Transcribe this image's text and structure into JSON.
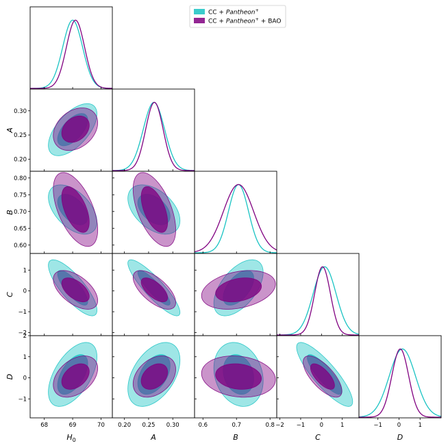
{
  "chart_data": {
    "type": "corner",
    "params": [
      {
        "name": "H0",
        "label": "H",
        "label_sub": "0",
        "range": [
          67.5,
          70.4
        ],
        "ticks": [
          "68",
          "69",
          "70"
        ],
        "tick_values": [
          68,
          69,
          70
        ]
      },
      {
        "name": "A",
        "label": "A",
        "label_sub": "",
        "range": [
          0.175,
          0.345
        ],
        "ticks": [
          "0.20",
          "0.25",
          "0.30"
        ],
        "tick_values": [
          0.2,
          0.25,
          0.3
        ]
      },
      {
        "name": "B",
        "label": "B",
        "label_sub": "",
        "range": [
          0.575,
          0.82
        ],
        "ticks": [
          "0.6",
          "0.7",
          "0.8"
        ],
        "tick_values": [
          0.6,
          0.7,
          0.8
        ]
      },
      {
        "name": "C",
        "label": "C",
        "label_sub": "",
        "range": [
          -2.15,
          1.8
        ],
        "ticks": [
          "−2",
          "−1",
          "0",
          "1"
        ],
        "tick_values": [
          -2,
          -1,
          0,
          1
        ]
      },
      {
        "name": "D",
        "label": "D",
        "label_sub": "",
        "range": [
          -1.9,
          2.0
        ],
        "ticks": [
          "−1",
          "0",
          "1"
        ],
        "tick_values": [
          -1,
          0,
          1
        ]
      }
    ],
    "left_ticks": {
      "A": [
        "0.20",
        "0.25",
        "0.30"
      ],
      "B": [
        "0.60",
        "0.65",
        "0.70",
        "0.75",
        "0.80"
      ],
      "C": [
        "−2",
        "−1",
        "0",
        "1"
      ],
      "D": [
        "−1",
        "0",
        "1",
        "2"
      ]
    },
    "left_tick_values": {
      "A": [
        0.2,
        0.25,
        0.3
      ],
      "B": [
        0.6,
        0.65,
        0.7,
        0.75,
        0.8
      ],
      "C": [
        -2,
        -1,
        0,
        1
      ],
      "D": [
        -1,
        0,
        1,
        2
      ]
    },
    "series": [
      {
        "name": "CC + Pantheon⁺",
        "name_base": "CC + ",
        "name_italic": "Pantheon",
        "name_sup": "+",
        "name_suffix": "",
        "color": "#19c3c3",
        "mean": {
          "H0": 69.0,
          "A": 0.261,
          "B": 0.706,
          "C": 0.15,
          "D": 0.16
        },
        "sigma": {
          "H0": 0.35,
          "A": 0.022,
          "B": 0.03,
          "C": 0.55,
          "D": 0.62
        }
      },
      {
        "name": "CC + Pantheon⁺ + BAO",
        "name_base": "CC + ",
        "name_italic": "Pantheon",
        "name_sup": "+",
        "name_suffix": " + BAO",
        "color": "#800080",
        "mean": {
          "H0": 69.1,
          "A": 0.262,
          "B": 0.706,
          "C": 0.05,
          "D": 0.06
        },
        "sigma": {
          "H0": 0.32,
          "A": 0.018,
          "B": 0.045,
          "C": 0.38,
          "D": 0.4
        }
      }
    ],
    "correlations": {
      "CC + Pantheon⁺": {
        "H0-A": 0.6,
        "H0-B": -0.5,
        "H0-C": -0.8,
        "H0-D": 0.55,
        "A-B": -0.45,
        "A-C": -0.88,
        "A-D": 0.45,
        "B-C": 0.55,
        "B-D": -0.2,
        "C-D": -0.85
      },
      "CC + Pantheon⁺ + BAO": {
        "H0-A": 0.3,
        "H0-B": -0.55,
        "H0-C": -0.55,
        "H0-D": 0.4,
        "A-B": -0.55,
        "A-C": -0.65,
        "A-D": 0.35,
        "B-C": 0.3,
        "B-D": -0.15,
        "C-D": -0.7
      }
    },
    "contour_levels": [
      "68%",
      "95%"
    ],
    "legend_position": "top-center"
  }
}
